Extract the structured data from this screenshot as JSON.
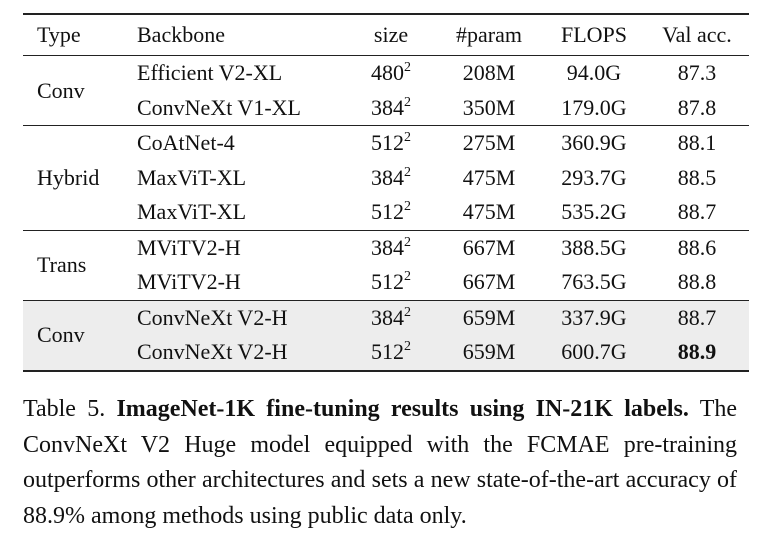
{
  "table": {
    "headers": [
      "Type",
      "Backbone",
      "size",
      "#param",
      "FLOPS",
      "Val acc."
    ],
    "groups": [
      {
        "type": "Conv",
        "rows": [
          {
            "backbone": "Efficient V2-XL",
            "size": "480",
            "exp": "2",
            "param": "208M",
            "flops": "94.0G",
            "acc": "87.3"
          },
          {
            "backbone": "ConvNeXt V1-XL",
            "size": "384",
            "exp": "2",
            "param": "350M",
            "flops": "179.0G",
            "acc": "87.8"
          }
        ]
      },
      {
        "type": "Hybrid",
        "rows": [
          {
            "backbone": "CoAtNet-4",
            "size": "512",
            "exp": "2",
            "param": "275M",
            "flops": "360.9G",
            "acc": "88.1"
          },
          {
            "backbone": "MaxViT-XL",
            "size": "384",
            "exp": "2",
            "param": "475M",
            "flops": "293.7G",
            "acc": "88.5"
          },
          {
            "backbone": "MaxViT-XL",
            "size": "512",
            "exp": "2",
            "param": "475M",
            "flops": "535.2G",
            "acc": "88.7"
          }
        ]
      },
      {
        "type": "Trans",
        "rows": [
          {
            "backbone": "MViTV2-H",
            "size": "384",
            "exp": "2",
            "param": "667M",
            "flops": "388.5G",
            "acc": "88.6"
          },
          {
            "backbone": "MViTV2-H",
            "size": "512",
            "exp": "2",
            "param": "667M",
            "flops": "763.5G",
            "acc": "88.8"
          }
        ]
      },
      {
        "type": "Conv",
        "highlight": true,
        "rows": [
          {
            "backbone": "ConvNeXt V2-H",
            "size": "384",
            "exp": "2",
            "param": "659M",
            "flops": "337.9G",
            "acc": "88.7"
          },
          {
            "backbone": "ConvNeXt V2-H",
            "size": "512",
            "exp": "2",
            "param": "659M",
            "flops": "600.7G",
            "acc": "88.9",
            "best": true
          }
        ]
      }
    ]
  },
  "caption": {
    "label": "Table 5.",
    "title": "ImageNet-1K fine-tuning results using IN-21K labels",
    "body": "The ConvNeXt V2 Huge model equipped with the FCMAE pre-training outperforms other architectures and sets a new state-of-the-art accuracy of 88.9% among methods using public data only."
  }
}
